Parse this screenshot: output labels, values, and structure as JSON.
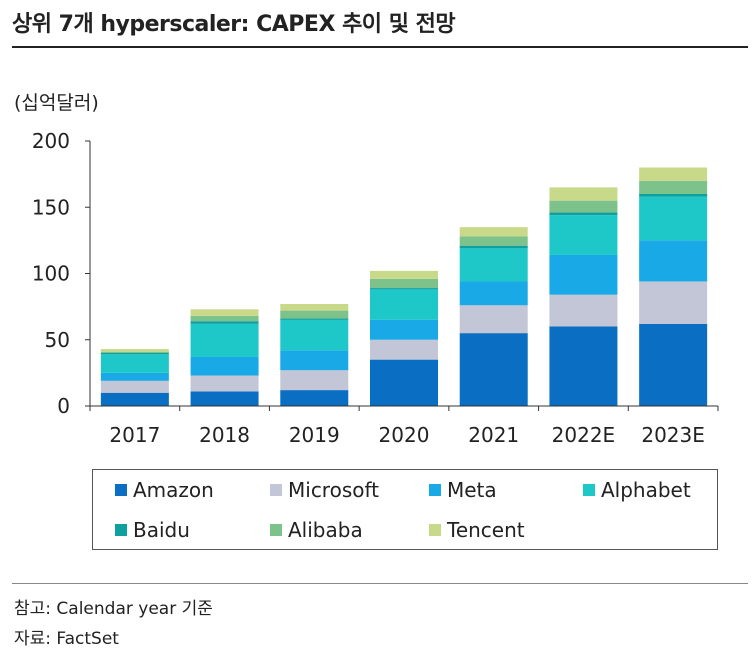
{
  "title": "상위 7개 hyperscaler: CAPEX 추이 및 전망",
  "unit_label": "(십억달러)",
  "footer": {
    "note": "참고: Calendar year 기준",
    "source": "자료: FactSet"
  },
  "chart_data": {
    "type": "bar",
    "stacked": true,
    "title": "상위 7개 hyperscaler: CAPEX 추이 및 전망",
    "ylabel": "(십억달러)",
    "xlabel": "",
    "ylim": [
      0,
      200
    ],
    "yticks": [
      0,
      50,
      100,
      150,
      200
    ],
    "grid": false,
    "legend_position": "bottom",
    "categories": [
      "2017",
      "2018",
      "2019",
      "2020",
      "2021",
      "2022E",
      "2023E"
    ],
    "series": [
      {
        "name": "Amazon",
        "color": "#0a6fc2",
        "values": [
          10,
          11,
          12,
          35,
          55,
          60,
          62
        ]
      },
      {
        "name": "Microsoft",
        "color": "#c3c6d6",
        "values": [
          9,
          12,
          15,
          15,
          21,
          24,
          32
        ]
      },
      {
        "name": "Meta",
        "color": "#19a9e6",
        "values": [
          6,
          14,
          15,
          15,
          18,
          30,
          31
        ]
      },
      {
        "name": "Alphabet",
        "color": "#1ec8c8",
        "values": [
          14,
          25,
          23,
          23,
          25,
          30,
          33
        ]
      },
      {
        "name": "Baidu",
        "color": "#0e9f9f",
        "values": [
          1,
          2,
          1,
          1,
          2,
          2,
          2
        ]
      },
      {
        "name": "Alibaba",
        "color": "#7cc28a",
        "values": [
          1,
          4,
          6,
          7,
          7,
          9,
          10
        ]
      },
      {
        "name": "Tencent",
        "color": "#c9d98a",
        "values": [
          2,
          5,
          5,
          6,
          7,
          10,
          10
        ]
      }
    ]
  }
}
